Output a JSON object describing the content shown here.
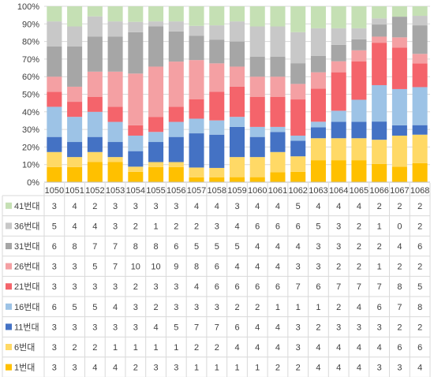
{
  "chart_data": {
    "type": "bar",
    "stacked": "percent",
    "categories": [
      "1050",
      "1051",
      "1052",
      "1053",
      "1054",
      "1055",
      "1056",
      "1057",
      "1058",
      "1059",
      "1060",
      "1061",
      "1062",
      "1063",
      "1064",
      "1065",
      "1066",
      "1067",
      "1068"
    ],
    "y_ticks": [
      "0%",
      "10%",
      "20%",
      "30%",
      "40%",
      "50%",
      "60%",
      "70%",
      "80%",
      "90%",
      "100%"
    ],
    "ylim": [
      0,
      100
    ],
    "grid": true,
    "legend": "data-table-left",
    "series": [
      {
        "name": "1번대",
        "color": "#FFC000",
        "values": [
          3,
          3,
          4,
          4,
          2,
          3,
          3,
          1,
          1,
          1,
          1,
          2,
          2,
          4,
          4,
          4,
          3,
          3,
          4
        ]
      },
      {
        "name": "6번대",
        "color": "#FFD966",
        "values": [
          3,
          2,
          2,
          1,
          1,
          1,
          1,
          2,
          2,
          4,
          4,
          4,
          3,
          4,
          4,
          4,
          4,
          6,
          6
        ]
      },
      {
        "name": "11번대",
        "color": "#4472C4",
        "values": [
          3,
          3,
          3,
          3,
          3,
          4,
          5,
          7,
          7,
          6,
          4,
          4,
          3,
          2,
          3,
          3,
          3,
          2,
          2
        ]
      },
      {
        "name": "16번대",
        "color": "#9DC3E6",
        "values": [
          6,
          5,
          5,
          4,
          3,
          2,
          3,
          3,
          3,
          2,
          2,
          1,
          1,
          1,
          2,
          4,
          6,
          7,
          8
        ]
      },
      {
        "name": "21번대",
        "color": "#F4646B",
        "values": [
          3,
          3,
          3,
          3,
          2,
          3,
          3,
          4,
          6,
          6,
          6,
          6,
          7,
          6,
          7,
          7,
          7,
          8,
          5
        ]
      },
      {
        "name": "26번대",
        "color": "#F4A0A3",
        "values": [
          3,
          3,
          5,
          7,
          10,
          10,
          9,
          8,
          6,
          4,
          4,
          4,
          3,
          3,
          2,
          2,
          1,
          2,
          2
        ]
      },
      {
        "name": "31번대",
        "color": "#A6A6A6",
        "values": [
          6,
          8,
          7,
          7,
          8,
          8,
          6,
          5,
          5,
          5,
          4,
          4,
          4,
          3,
          3,
          2,
          2,
          4,
          6
        ]
      },
      {
        "name": "36번대",
        "color": "#C8C8C8",
        "values": [
          5,
          4,
          4,
          3,
          2,
          1,
          2,
          2,
          3,
          4,
          6,
          6,
          6,
          5,
          3,
          2,
          1,
          0,
          2
        ]
      },
      {
        "name": "41번대",
        "color": "#C5E0B4",
        "values": [
          3,
          4,
          2,
          3,
          3,
          3,
          3,
          4,
          4,
          3,
          4,
          4,
          5,
          4,
          4,
          4,
          2,
          2,
          2
        ]
      }
    ]
  }
}
